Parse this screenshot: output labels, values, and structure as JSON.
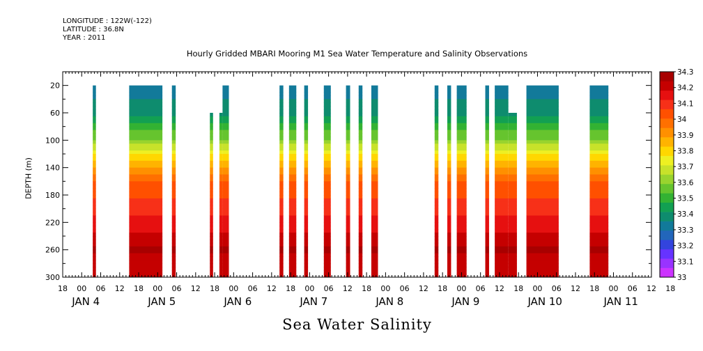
{
  "header": {
    "longitude": "LONGITUDE : 122W(-122)",
    "latitude": "LATITUDE : 36.8N",
    "year": "YEAR : 2011"
  },
  "colors": {
    "scale": [
      "#cc33ff",
      "#9933ff",
      "#6633ff",
      "#3344dd",
      "#2266bb",
      "#127a9a",
      "#0e8c6e",
      "#12a052",
      "#33b233",
      "#66c42e",
      "#99d42e",
      "#c8e22a",
      "#eef022",
      "#ffd700",
      "#ffb300",
      "#ff9000",
      "#ff7000",
      "#ff5000",
      "#f73018",
      "#e61010",
      "#c50000",
      "#a80000"
    ],
    "axes": "#000000"
  },
  "chart_data": {
    "type": "heatmap",
    "title": "Hourly Gridded MBARI Mooring M1 Sea Water Temperature and Salinity Observations",
    "xlabel": "Sea Water Salinity",
    "ylabel": "DEPTH (m)",
    "xlim_hours": [
      -6,
      180
    ],
    "ylim": [
      300,
      0
    ],
    "y_ticks": [
      20,
      60,
      100,
      140,
      180,
      220,
      260,
      300
    ],
    "x_hour_tick_labels": [
      "18",
      "00",
      "06",
      "12",
      "18",
      "00",
      "06",
      "12",
      "18",
      "00",
      "06",
      "12",
      "18",
      "00",
      "06",
      "12",
      "18",
      "00",
      "06",
      "12",
      "18",
      "00",
      "06",
      "12",
      "18",
      "00",
      "06",
      "12",
      "18",
      "00",
      "06",
      "12",
      "18"
    ],
    "x_date_labels": [
      {
        "text": "JAN 4",
        "hour": 0
      },
      {
        "text": "JAN 5",
        "hour": 24
      },
      {
        "text": "JAN 6",
        "hour": 48
      },
      {
        "text": "JAN 7",
        "hour": 72
      },
      {
        "text": "JAN 8",
        "hour": 96
      },
      {
        "text": "JAN 9",
        "hour": 120
      },
      {
        "text": "JAN 10",
        "hour": 144
      },
      {
        "text": "JAN 11",
        "hour": 168
      }
    ],
    "colorbar": {
      "levels": [
        33,
        33.1,
        33.2,
        33.3,
        33.4,
        33.5,
        33.6,
        33.7,
        33.8,
        33.9,
        34,
        34.1,
        34.2,
        34.3
      ],
      "labels": [
        "33",
        "33.1",
        "33.2",
        "33.3",
        "33.4",
        "33.5",
        "33.6",
        "33.7",
        "33.8",
        "33.9",
        "34",
        "34.1",
        "34.2",
        "34.3"
      ]
    },
    "data_blocks_hours": [
      {
        "start": 3.5,
        "end": 4.5,
        "top_depth": 20
      },
      {
        "start": 15,
        "end": 25.5,
        "top_depth": 20
      },
      {
        "start": 28.5,
        "end": 29.7,
        "top_depth": 20
      },
      {
        "start": 40.5,
        "end": 41.5,
        "top_depth": 60
      },
      {
        "start": 43.5,
        "end": 44.5,
        "top_depth": 60
      },
      {
        "start": 44.5,
        "end": 46.5,
        "top_depth": 20
      },
      {
        "start": 62.5,
        "end": 63.7,
        "top_depth": 20
      },
      {
        "start": 65.5,
        "end": 67.8,
        "top_depth": 20
      },
      {
        "start": 70.3,
        "end": 71.5,
        "top_depth": 20
      },
      {
        "start": 76.5,
        "end": 78.7,
        "top_depth": 20
      },
      {
        "start": 83.5,
        "end": 84.8,
        "top_depth": 20
      },
      {
        "start": 87.5,
        "end": 88.7,
        "top_depth": 20
      },
      {
        "start": 91.5,
        "end": 93.6,
        "top_depth": 20
      },
      {
        "start": 111.5,
        "end": 112.7,
        "top_depth": 20
      },
      {
        "start": 115.5,
        "end": 116.7,
        "top_depth": 20
      },
      {
        "start": 118.5,
        "end": 121.6,
        "top_depth": 20
      },
      {
        "start": 127.5,
        "end": 128.7,
        "top_depth": 20
      },
      {
        "start": 130.5,
        "end": 134.8,
        "top_depth": 20
      },
      {
        "start": 134.8,
        "end": 137.5,
        "top_depth": 60
      },
      {
        "start": 140.5,
        "end": 150.7,
        "top_depth": 20
      },
      {
        "start": 160.5,
        "end": 166.4,
        "top_depth": 20
      }
    ],
    "salinity_profile": [
      {
        "depth": 20,
        "value": 33.3
      },
      {
        "depth": 40,
        "value": 33.35
      },
      {
        "depth": 60,
        "value": 33.4
      },
      {
        "depth": 80,
        "value": 33.5
      },
      {
        "depth": 100,
        "value": 33.6
      },
      {
        "depth": 120,
        "value": 33.75
      },
      {
        "depth": 140,
        "value": 33.9
      },
      {
        "depth": 160,
        "value": 34.0
      },
      {
        "depth": 180,
        "value": 34.05
      },
      {
        "depth": 200,
        "value": 34.1
      },
      {
        "depth": 220,
        "value": 34.15
      },
      {
        "depth": 240,
        "value": 34.2
      },
      {
        "depth": 260,
        "value": 34.25
      },
      {
        "depth": 280,
        "value": 34.2
      },
      {
        "depth": 300,
        "value": 34.2
      }
    ]
  }
}
